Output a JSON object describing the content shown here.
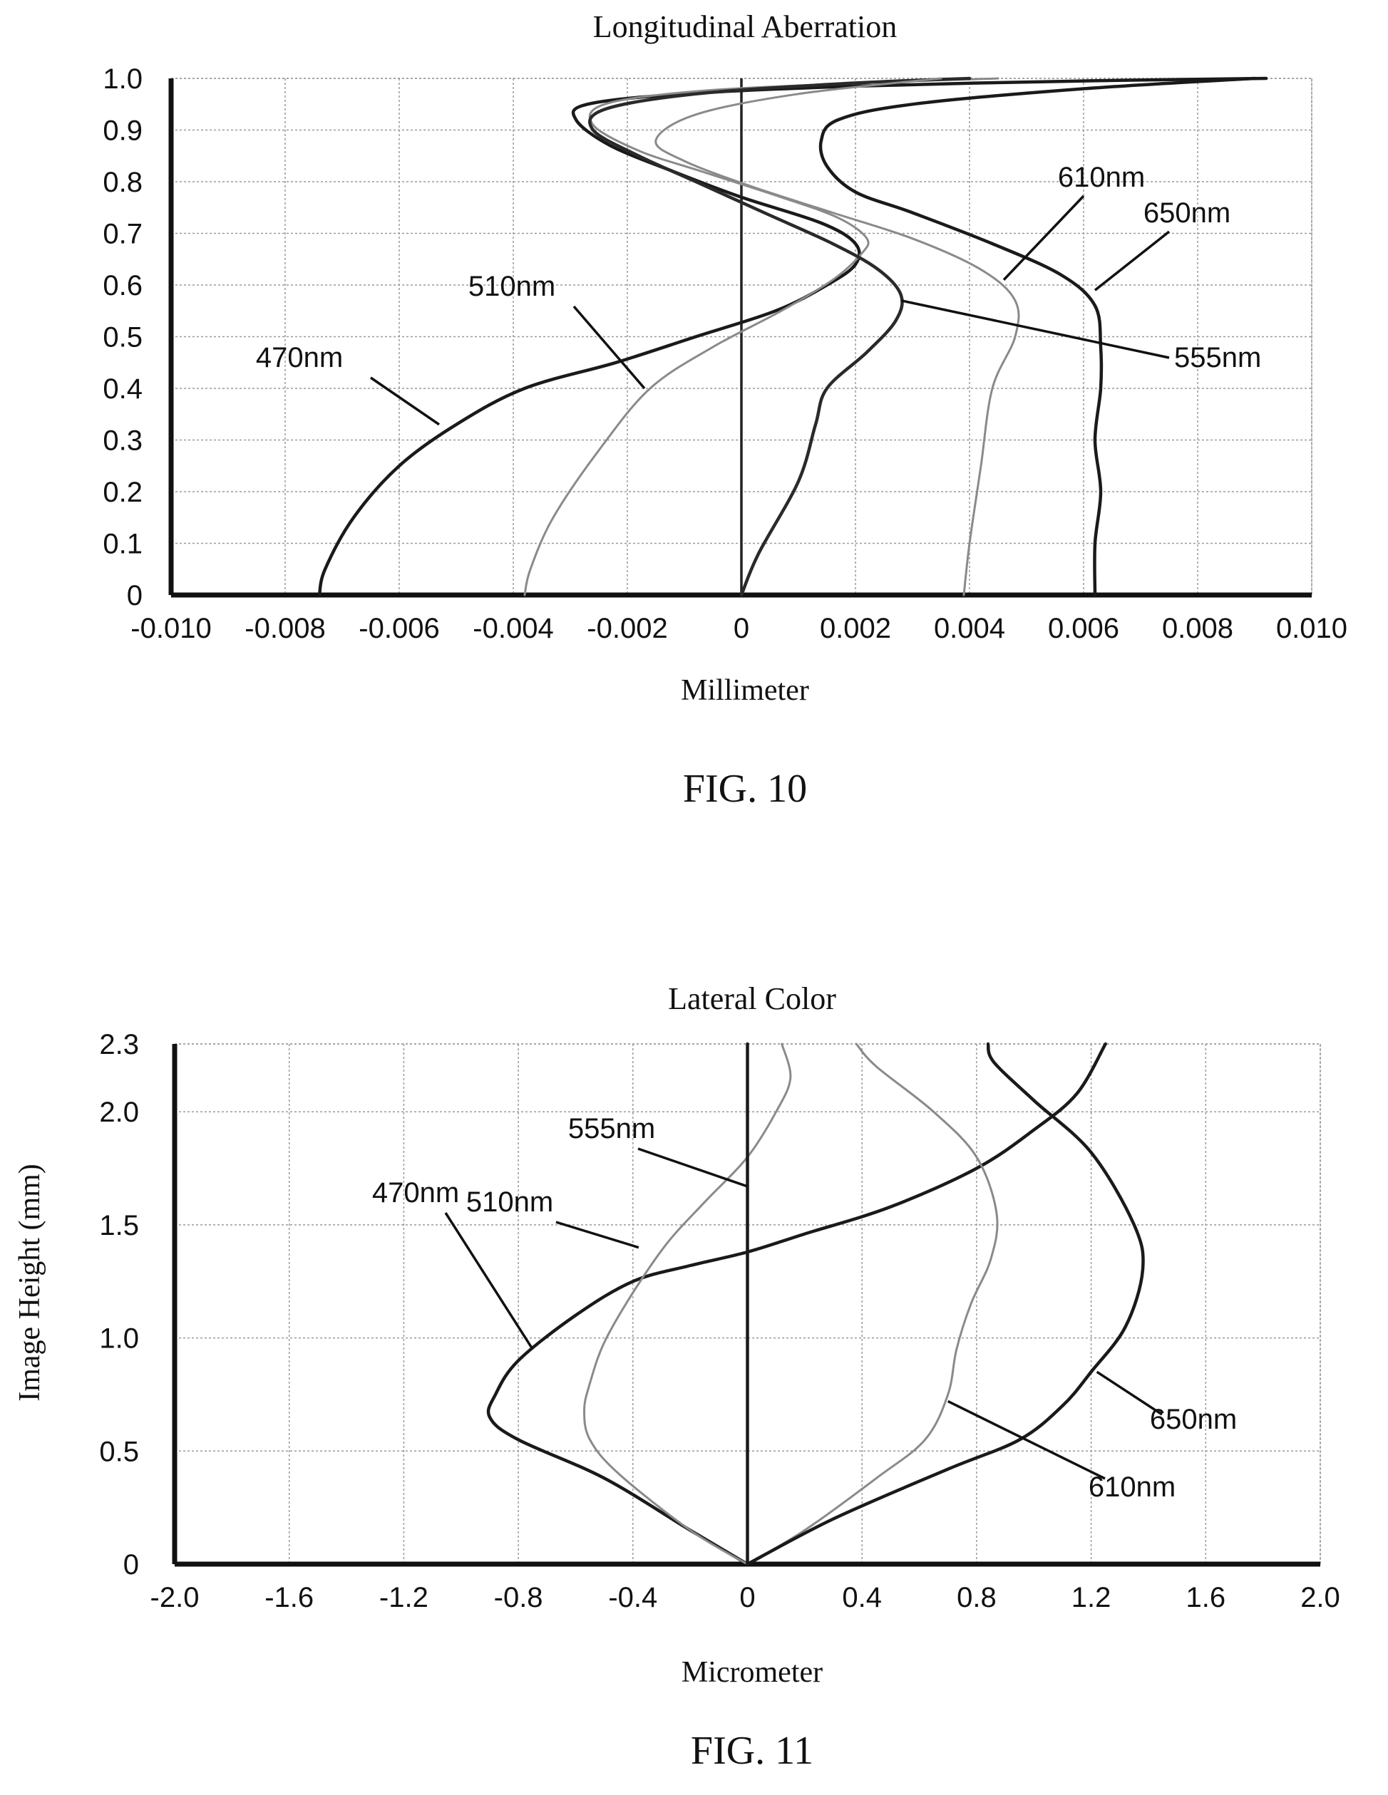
{
  "chart_data": [
    {
      "type": "line",
      "figure_label": "FIG. 10",
      "title": "Longitudinal Aberration",
      "xlabel": "Millimeter",
      "ylabel": "",
      "xlim": [
        -0.01,
        0.01
      ],
      "ylim": [
        0,
        1.0
      ],
      "grid": true,
      "x_ticks": [
        "-0.010",
        "-0.008",
        "-0.006",
        "-0.004",
        "-0.002",
        "0",
        "0.002",
        "0.004",
        "0.006",
        "0.008",
        "0.010"
      ],
      "y_ticks": [
        "0",
        "0.1",
        "0.2",
        "0.3",
        "0.4",
        "0.5",
        "0.6",
        "0.7",
        "0.8",
        "0.9",
        "1.0"
      ],
      "series": [
        {
          "name": "470nm",
          "color": "#1a1a1a",
          "x": [
            -0.0074,
            -0.0073,
            -0.0068,
            -0.006,
            -0.005,
            -0.0038,
            -0.0022,
            -0.0008,
            0.0006,
            0.0015,
            0.002,
            0.002,
            0.0014,
            0.0,
            -0.0012,
            -0.0023,
            -0.0029,
            -0.0027,
            -0.001,
            0.002,
            0.006,
            0.0092
          ],
          "y": [
            0,
            0.05,
            0.15,
            0.25,
            0.33,
            0.4,
            0.45,
            0.5,
            0.55,
            0.6,
            0.64,
            0.68,
            0.72,
            0.77,
            0.82,
            0.87,
            0.92,
            0.95,
            0.97,
            0.985,
            0.995,
            1.0
          ]
        },
        {
          "name": "510nm",
          "color": "#8a8a8a",
          "x": [
            -0.0038,
            -0.0037,
            -0.0033,
            -0.0025,
            -0.0016,
            -0.0005,
            0.0007,
            0.0016,
            0.0021,
            0.0022,
            0.0017,
            0.0007,
            -0.0007,
            -0.0018,
            -0.0026,
            -0.0024,
            -0.0008,
            0.0018,
            0.0045
          ],
          "y": [
            0,
            0.05,
            0.15,
            0.28,
            0.4,
            0.48,
            0.55,
            0.61,
            0.66,
            0.69,
            0.73,
            0.77,
            0.82,
            0.86,
            0.91,
            0.95,
            0.975,
            0.99,
            1.0
          ]
        },
        {
          "name": "555nm",
          "color": "#2a2a2a",
          "x": [
            0.0,
            0.0003,
            0.001,
            0.0013,
            0.0015,
            0.0022,
            0.0027,
            0.0028,
            0.0024,
            0.0016,
            0.0004,
            -0.0008,
            -0.0018,
            -0.0026,
            -0.0024,
            -0.0008,
            0.0018,
            0.004
          ],
          "y": [
            0,
            0.08,
            0.22,
            0.33,
            0.4,
            0.47,
            0.53,
            0.58,
            0.63,
            0.68,
            0.74,
            0.8,
            0.85,
            0.9,
            0.94,
            0.97,
            0.99,
            1.0
          ]
        },
        {
          "name": "610nm",
          "color": "#8a8a8a",
          "x": [
            0.0039,
            0.004,
            0.0042,
            0.0044,
            0.0048,
            0.0048,
            0.0042,
            0.003,
            0.0016,
            0.0002,
            -0.001,
            -0.0015,
            -0.0008,
            0.001,
            0.0035
          ],
          "y": [
            0,
            0.1,
            0.25,
            0.4,
            0.5,
            0.57,
            0.63,
            0.69,
            0.74,
            0.79,
            0.84,
            0.88,
            0.93,
            0.97,
            1.0
          ]
        },
        {
          "name": "650nm",
          "color": "#1a1a1a",
          "x": [
            0.0062,
            0.0062,
            0.0063,
            0.0062,
            0.0063,
            0.0063,
            0.0062,
            0.0056,
            0.0044,
            0.003,
            0.002,
            0.0015,
            0.0014,
            0.0017,
            0.003,
            0.006,
            0.009
          ],
          "y": [
            0,
            0.1,
            0.2,
            0.3,
            0.4,
            0.48,
            0.56,
            0.62,
            0.68,
            0.74,
            0.78,
            0.83,
            0.88,
            0.92,
            0.95,
            0.98,
            1.0
          ]
        }
      ],
      "annotations": [
        {
          "text": "470nm",
          "series": "470nm",
          "point": [
            -0.0053,
            0.33
          ]
        },
        {
          "text": "510nm",
          "series": "510nm",
          "point": [
            -0.0017,
            0.4
          ]
        },
        {
          "text": "555nm",
          "series": "555nm",
          "point": [
            0.0028,
            0.57
          ]
        },
        {
          "text": "610nm",
          "series": "610nm",
          "point": [
            0.0046,
            0.61
          ]
        },
        {
          "text": "650nm",
          "series": "650nm",
          "point": [
            0.0062,
            0.59
          ]
        }
      ]
    },
    {
      "type": "line",
      "figure_label": "FIG. 11",
      "title": "Lateral Color",
      "xlabel": "Micrometer",
      "ylabel": "Image Height (mm)",
      "xlim": [
        -2.0,
        2.0
      ],
      "ylim": [
        0,
        2.3
      ],
      "grid": true,
      "x_ticks": [
        "-2.0",
        "-1.6",
        "-1.2",
        "-0.8",
        "-0.4",
        "0",
        "0.4",
        "0.8",
        "1.2",
        "1.6",
        "2.0"
      ],
      "y_ticks": [
        "0",
        "0.5",
        "1.0",
        "1.5",
        "2.0",
        "2.3"
      ],
      "series": [
        {
          "name": "470nm",
          "color": "#1a1a1a",
          "x": [
            0.0,
            -0.2,
            -0.5,
            -0.8,
            -0.9,
            -0.88,
            -0.8,
            -0.6,
            -0.4,
            -0.2,
            0.0,
            0.2,
            0.5,
            0.8,
            1.0,
            1.15,
            1.25
          ],
          "y": [
            0,
            0.15,
            0.38,
            0.55,
            0.65,
            0.75,
            0.9,
            1.1,
            1.25,
            1.32,
            1.38,
            1.46,
            1.58,
            1.75,
            1.92,
            2.08,
            2.3
          ]
        },
        {
          "name": "510nm",
          "color": "#8a8a8a",
          "x": [
            0.0,
            -0.2,
            -0.45,
            -0.55,
            -0.57,
            -0.55,
            -0.5,
            -0.4,
            -0.28,
            -0.15,
            0.0,
            0.1,
            0.15,
            0.12
          ],
          "y": [
            0,
            0.15,
            0.4,
            0.55,
            0.68,
            0.8,
            0.98,
            1.2,
            1.42,
            1.6,
            1.8,
            2.0,
            2.15,
            2.3
          ]
        },
        {
          "name": "555nm",
          "color": "#1a1a1a",
          "x": [
            0.0,
            0.0,
            0.0,
            0.0,
            0.0,
            0.0,
            0.0
          ],
          "y": [
            0,
            0.4,
            0.8,
            1.2,
            1.6,
            2.0,
            2.3
          ]
        },
        {
          "name": "610nm",
          "color": "#8a8a8a",
          "x": [
            0.0,
            0.2,
            0.45,
            0.62,
            0.7,
            0.73,
            0.78,
            0.85,
            0.87,
            0.8,
            0.65,
            0.45,
            0.38
          ],
          "y": [
            0,
            0.15,
            0.38,
            0.55,
            0.75,
            0.95,
            1.15,
            1.35,
            1.55,
            1.8,
            2.0,
            2.2,
            2.3
          ]
        },
        {
          "name": "650nm",
          "color": "#1a1a1a",
          "x": [
            0.0,
            0.3,
            0.7,
            0.95,
            1.1,
            1.2,
            1.32,
            1.38,
            1.35,
            1.2,
            1.0,
            0.86,
            0.84
          ],
          "y": [
            0,
            0.2,
            0.42,
            0.55,
            0.7,
            0.85,
            1.05,
            1.3,
            1.5,
            1.82,
            2.05,
            2.22,
            2.3
          ]
        }
      ],
      "annotations": [
        {
          "text": "470nm",
          "series": "470nm",
          "point": [
            -0.75,
            0.95
          ]
        },
        {
          "text": "510nm",
          "series": "510nm",
          "point": [
            -0.38,
            1.4
          ]
        },
        {
          "text": "555nm",
          "series": "555nm",
          "point": [
            0.0,
            1.67
          ]
        },
        {
          "text": "610nm",
          "series": "610nm",
          "point": [
            0.7,
            0.72
          ]
        },
        {
          "text": "650nm",
          "series": "650nm",
          "point": [
            1.22,
            0.85
          ]
        }
      ]
    }
  ]
}
